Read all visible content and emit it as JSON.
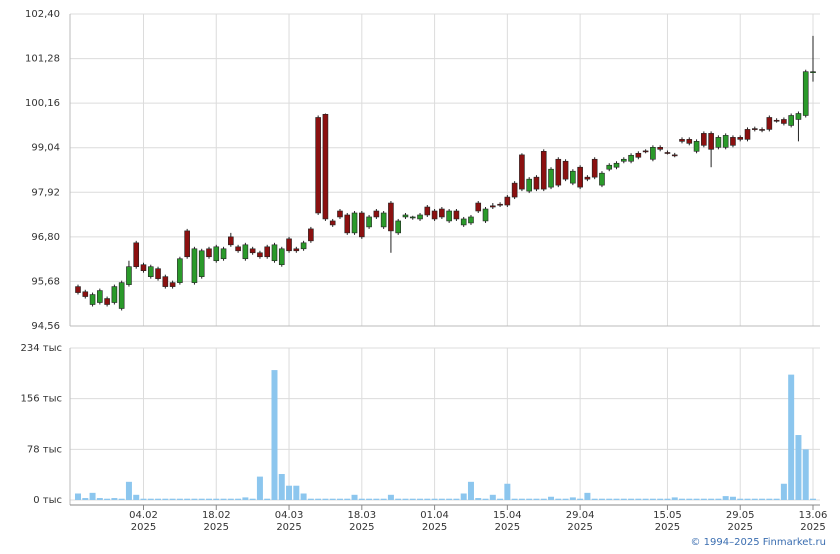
{
  "chart_data": {
    "type": "candlestick",
    "x": [
      "2025-01-22",
      "2025-01-23",
      "2025-01-24",
      "2025-01-27",
      "2025-01-28",
      "2025-01-29",
      "2025-01-30",
      "2025-01-31",
      "2025-02-03",
      "2025-02-04",
      "2025-02-05",
      "2025-02-06",
      "2025-02-07",
      "2025-02-10",
      "2025-02-11",
      "2025-02-12",
      "2025-02-13",
      "2025-02-14",
      "2025-02-17",
      "2025-02-18",
      "2025-02-19",
      "2025-02-20",
      "2025-02-21",
      "2025-02-24",
      "2025-02-25",
      "2025-02-26",
      "2025-02-27",
      "2025-02-28",
      "2025-03-03",
      "2025-03-04",
      "2025-03-05",
      "2025-03-06",
      "2025-03-07",
      "2025-03-10",
      "2025-03-11",
      "2025-03-12",
      "2025-03-13",
      "2025-03-14",
      "2025-03-17",
      "2025-03-18",
      "2025-03-19",
      "2025-03-20",
      "2025-03-21",
      "2025-03-24",
      "2025-03-25",
      "2025-03-26",
      "2025-03-27",
      "2025-03-28",
      "2025-03-31",
      "2025-04-01",
      "2025-04-02",
      "2025-04-03",
      "2025-04-04",
      "2025-04-07",
      "2025-04-08",
      "2025-04-09",
      "2025-04-10",
      "2025-04-11",
      "2025-04-14",
      "2025-04-15",
      "2025-04-16",
      "2025-04-17",
      "2025-04-18",
      "2025-04-21",
      "2025-04-22",
      "2025-04-23",
      "2025-04-24",
      "2025-04-25",
      "2025-04-28",
      "2025-04-29",
      "2025-04-30",
      "2025-05-01",
      "2025-05-02",
      "2025-05-05",
      "2025-05-06",
      "2025-05-07",
      "2025-05-08",
      "2025-05-09",
      "2025-05-12",
      "2025-05-13",
      "2025-05-14",
      "2025-05-15",
      "2025-05-16",
      "2025-05-19",
      "2025-05-20",
      "2025-05-21",
      "2025-05-22",
      "2025-05-23",
      "2025-05-26",
      "2025-05-27",
      "2025-05-28",
      "2025-05-29",
      "2025-05-30",
      "2025-06-02",
      "2025-06-03",
      "2025-06-04",
      "2025-06-05",
      "2025-06-06",
      "2025-06-09",
      "2025-06-10",
      "2025-06-11",
      "2025-06-13"
    ],
    "open": [
      95.55,
      95.42,
      95.1,
      95.15,
      95.25,
      95.15,
      95.0,
      95.6,
      96.65,
      96.1,
      95.8,
      96.0,
      95.8,
      95.65,
      95.65,
      96.95,
      95.65,
      95.8,
      96.5,
      96.2,
      96.25,
      96.8,
      96.55,
      96.25,
      96.5,
      96.4,
      96.55,
      96.2,
      96.1,
      96.75,
      96.5,
      96.5,
      97.0,
      99.8,
      99.88,
      97.2,
      97.45,
      97.35,
      96.9,
      97.4,
      97.05,
      97.45,
      97.05,
      97.65,
      96.9,
      97.3,
      97.28,
      97.25,
      97.55,
      97.45,
      97.5,
      97.2,
      97.45,
      97.1,
      97.15,
      97.65,
      97.2,
      97.58,
      97.62,
      97.8,
      98.15,
      98.86,
      97.95,
      98.3,
      98.95,
      98.05,
      98.75,
      98.7,
      98.15,
      98.55,
      98.3,
      98.75,
      98.1,
      98.5,
      98.55,
      98.7,
      98.7,
      98.9,
      98.96,
      98.75,
      99.05,
      98.92,
      98.86,
      99.25,
      99.25,
      98.95,
      99.4,
      99.4,
      99.05,
      99.05,
      99.3,
      99.3,
      99.5,
      99.52,
      99.5,
      99.8,
      99.73,
      99.75,
      99.6,
      99.75,
      99.85,
      100.95
    ],
    "high": [
      95.6,
      95.47,
      95.4,
      95.5,
      95.3,
      95.6,
      95.7,
      96.2,
      96.7,
      96.15,
      96.1,
      96.05,
      95.85,
      95.7,
      96.3,
      97.0,
      96.55,
      96.5,
      96.55,
      96.6,
      96.55,
      96.9,
      96.6,
      96.65,
      96.55,
      96.45,
      96.6,
      96.65,
      96.55,
      96.8,
      96.55,
      96.7,
      97.05,
      99.85,
      99.9,
      97.25,
      97.5,
      97.4,
      97.45,
      97.45,
      97.35,
      97.5,
      97.45,
      97.7,
      97.25,
      97.4,
      97.33,
      97.4,
      97.6,
      97.5,
      97.55,
      97.5,
      97.5,
      97.3,
      97.35,
      97.7,
      97.55,
      97.65,
      97.67,
      97.85,
      98.2,
      98.9,
      98.3,
      98.35,
      99.0,
      98.55,
      98.8,
      98.75,
      98.5,
      98.6,
      98.35,
      98.8,
      98.45,
      98.65,
      98.7,
      98.8,
      98.9,
      98.95,
      99.0,
      99.1,
      99.1,
      98.97,
      98.91,
      99.3,
      99.3,
      99.25,
      99.45,
      99.45,
      99.35,
      99.4,
      99.35,
      99.35,
      99.55,
      99.57,
      99.55,
      99.85,
      99.78,
      99.8,
      99.9,
      99.95,
      101.0,
      101.85
    ],
    "low": [
      95.35,
      95.25,
      95.05,
      95.1,
      95.05,
      95.1,
      94.95,
      95.55,
      96.0,
      95.9,
      95.75,
      95.7,
      95.5,
      95.5,
      95.6,
      96.25,
      95.6,
      95.75,
      96.25,
      96.15,
      96.2,
      96.55,
      96.4,
      96.2,
      96.35,
      96.25,
      96.25,
      96.15,
      96.05,
      96.4,
      96.4,
      96.45,
      96.65,
      97.35,
      97.2,
      97.05,
      97.25,
      96.85,
      96.85,
      96.75,
      97.0,
      97.25,
      97.0,
      96.4,
      96.85,
      97.25,
      97.23,
      97.2,
      97.3,
      97.2,
      97.25,
      97.15,
      97.2,
      97.05,
      97.1,
      97.4,
      97.15,
      97.5,
      97.55,
      97.55,
      97.75,
      97.95,
      97.9,
      97.95,
      97.95,
      98.0,
      98.05,
      98.2,
      98.1,
      98.0,
      98.2,
      98.25,
      98.05,
      98.45,
      98.5,
      98.65,
      98.65,
      98.75,
      98.9,
      98.7,
      98.95,
      98.87,
      98.8,
      99.15,
      99.1,
      98.9,
      99.05,
      98.55,
      99.0,
      99.0,
      99.05,
      99.2,
      99.2,
      99.45,
      99.43,
      99.45,
      99.67,
      99.6,
      99.55,
      99.2,
      99.8,
      100.7
    ],
    "close": [
      95.4,
      95.3,
      95.35,
      95.45,
      95.1,
      95.55,
      95.65,
      96.05,
      96.05,
      95.95,
      96.05,
      95.75,
      95.55,
      95.55,
      96.25,
      96.3,
      96.5,
      96.45,
      96.3,
      96.55,
      96.5,
      96.6,
      96.45,
      96.6,
      96.4,
      96.3,
      96.3,
      96.6,
      96.5,
      96.45,
      96.45,
      96.65,
      96.7,
      97.4,
      97.25,
      97.1,
      97.3,
      96.9,
      97.4,
      96.8,
      97.3,
      97.3,
      97.4,
      96.95,
      97.2,
      97.35,
      97.3,
      97.35,
      97.35,
      97.25,
      97.3,
      97.45,
      97.25,
      97.25,
      97.3,
      97.45,
      97.5,
      97.55,
      97.6,
      97.6,
      97.8,
      98.0,
      98.25,
      98.0,
      98.0,
      98.5,
      98.1,
      98.25,
      98.45,
      98.05,
      98.25,
      98.3,
      98.4,
      98.6,
      98.65,
      98.75,
      98.85,
      98.8,
      98.95,
      99.05,
      99.0,
      98.9,
      98.85,
      99.2,
      99.15,
      99.2,
      99.1,
      99.0,
      99.3,
      99.35,
      99.1,
      99.25,
      99.25,
      99.5,
      99.48,
      99.5,
      99.72,
      99.65,
      99.85,
      99.9,
      100.95,
      100.95
    ],
    "up_color": "#2a9a2a",
    "down_color": "#8b1010",
    "ylim": [
      94.56,
      102.4
    ],
    "yticks": [
      {
        "value": 94.56,
        "label": "94,56"
      },
      {
        "value": 95.68,
        "label": "95,68"
      },
      {
        "value": 96.8,
        "label": "96,80"
      },
      {
        "value": 97.92,
        "label": "97,92"
      },
      {
        "value": 99.04,
        "label": "99,04"
      },
      {
        "value": 100.16,
        "label": "100,16"
      },
      {
        "value": 101.28,
        "label": "101,28"
      },
      {
        "value": 102.4,
        "label": "102,40"
      }
    ],
    "volume": [
      10000,
      3000,
      11000,
      3000,
      2000,
      3000,
      2000,
      28000,
      8000,
      2000,
      2000,
      2000,
      2000,
      2000,
      2000,
      2000,
      2000,
      2000,
      2000,
      2000,
      2000,
      2000,
      2000,
      4000,
      2000,
      36000,
      2000,
      200000,
      40000,
      22000,
      22000,
      10000,
      2000,
      2000,
      2000,
      2000,
      2000,
      2000,
      8000,
      2000,
      2000,
      2000,
      2000,
      8000,
      2000,
      2000,
      2000,
      2000,
      2000,
      2000,
      2000,
      2000,
      2000,
      10000,
      28000,
      3000,
      2000,
      8000,
      2000,
      25000,
      2000,
      2000,
      2000,
      2000,
      2000,
      5000,
      2000,
      2000,
      4000,
      2000,
      11000,
      2000,
      2000,
      2000,
      2000,
      2000,
      2000,
      2000,
      2000,
      2000,
      2000,
      2000,
      4000,
      2000,
      2000,
      2000,
      2000,
      2000,
      2000,
      6000,
      5000,
      2000,
      2000,
      2000,
      2000,
      2000,
      2000,
      25000,
      193000,
      100000,
      78000,
      2000
    ],
    "volume_color": "#8cc6ee",
    "volume_ylim": [
      0,
      234000
    ],
    "volume_yticks": [
      {
        "value": 0,
        "label": "0 тыс"
      },
      {
        "value": 78000,
        "label": "78 тыс"
      },
      {
        "value": 156000,
        "label": "156 тыс"
      },
      {
        "value": 234000,
        "label": "234 тыс"
      }
    ],
    "xticks": [
      {
        "value": "2025-02-04",
        "label": "04.02",
        "year": "2025"
      },
      {
        "value": "2025-02-18",
        "label": "18.02",
        "year": "2025"
      },
      {
        "value": "2025-03-04",
        "label": "04.03",
        "year": "2025"
      },
      {
        "value": "2025-03-18",
        "label": "18.03",
        "year": "2025"
      },
      {
        "value": "2025-04-01",
        "label": "01.04",
        "year": "2025"
      },
      {
        "value": "2025-04-15",
        "label": "15.04",
        "year": "2025"
      },
      {
        "value": "2025-04-29",
        "label": "29.04",
        "year": "2025"
      },
      {
        "value": "2025-05-15",
        "label": "15.05",
        "year": "2025"
      },
      {
        "value": "2025-05-29",
        "label": "29.05",
        "year": "2025"
      },
      {
        "value": "2025-06-13",
        "label": "13.06",
        "year": "2025"
      }
    ],
    "grid": true
  },
  "footer": "© 1994–2025 Finmarket.ru"
}
